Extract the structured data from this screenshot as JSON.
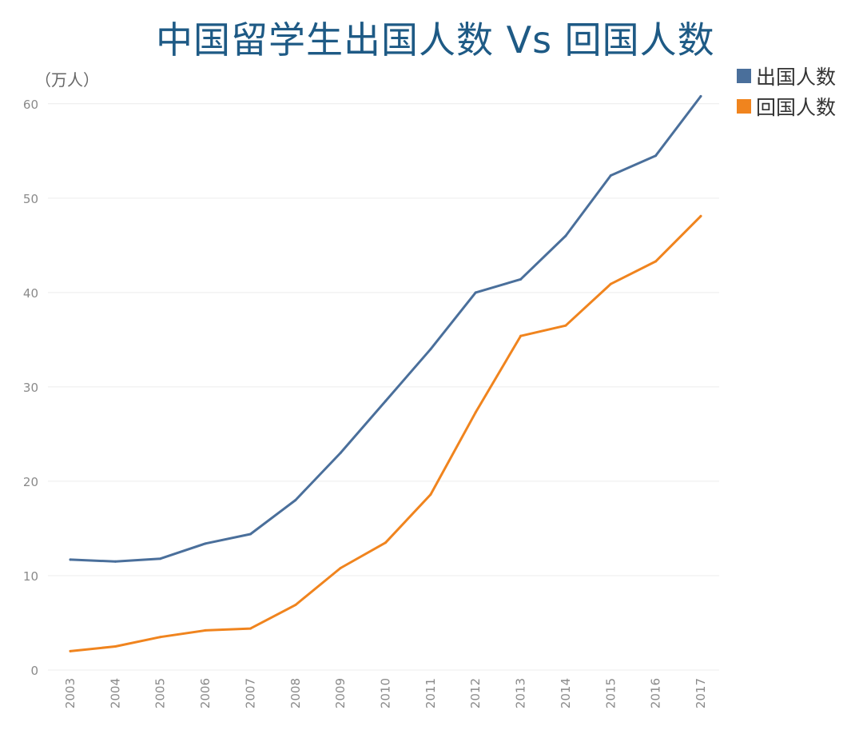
{
  "chart_data": {
    "type": "line",
    "title": "中国留学生出国人数 Vs 回国人数",
    "ylabel": "（万人）",
    "xlabel": "",
    "x": [
      "2003",
      "2004",
      "2005",
      "2006",
      "2007",
      "2008",
      "2009",
      "2010",
      "2011",
      "2012",
      "2013",
      "2014",
      "2015",
      "2016",
      "2017"
    ],
    "yticks": [
      "0",
      "10",
      "20",
      "30",
      "40",
      "50",
      "60"
    ],
    "ylim": [
      0,
      61
    ],
    "grid": true,
    "legend_position": "top-right",
    "series": [
      {
        "name": "出国人数",
        "color": "#4a6f9b",
        "values": [
          11.7,
          11.5,
          11.8,
          13.4,
          14.4,
          18.0,
          23.0,
          28.5,
          34.0,
          40.0,
          41.4,
          46.0,
          52.4,
          54.5,
          60.8
        ]
      },
      {
        "name": "回国人数",
        "color": "#f0841e",
        "values": [
          2.0,
          2.5,
          3.5,
          4.2,
          4.4,
          6.9,
          10.8,
          13.5,
          18.6,
          27.3,
          35.4,
          36.5,
          40.9,
          43.3,
          48.1
        ]
      }
    ]
  }
}
